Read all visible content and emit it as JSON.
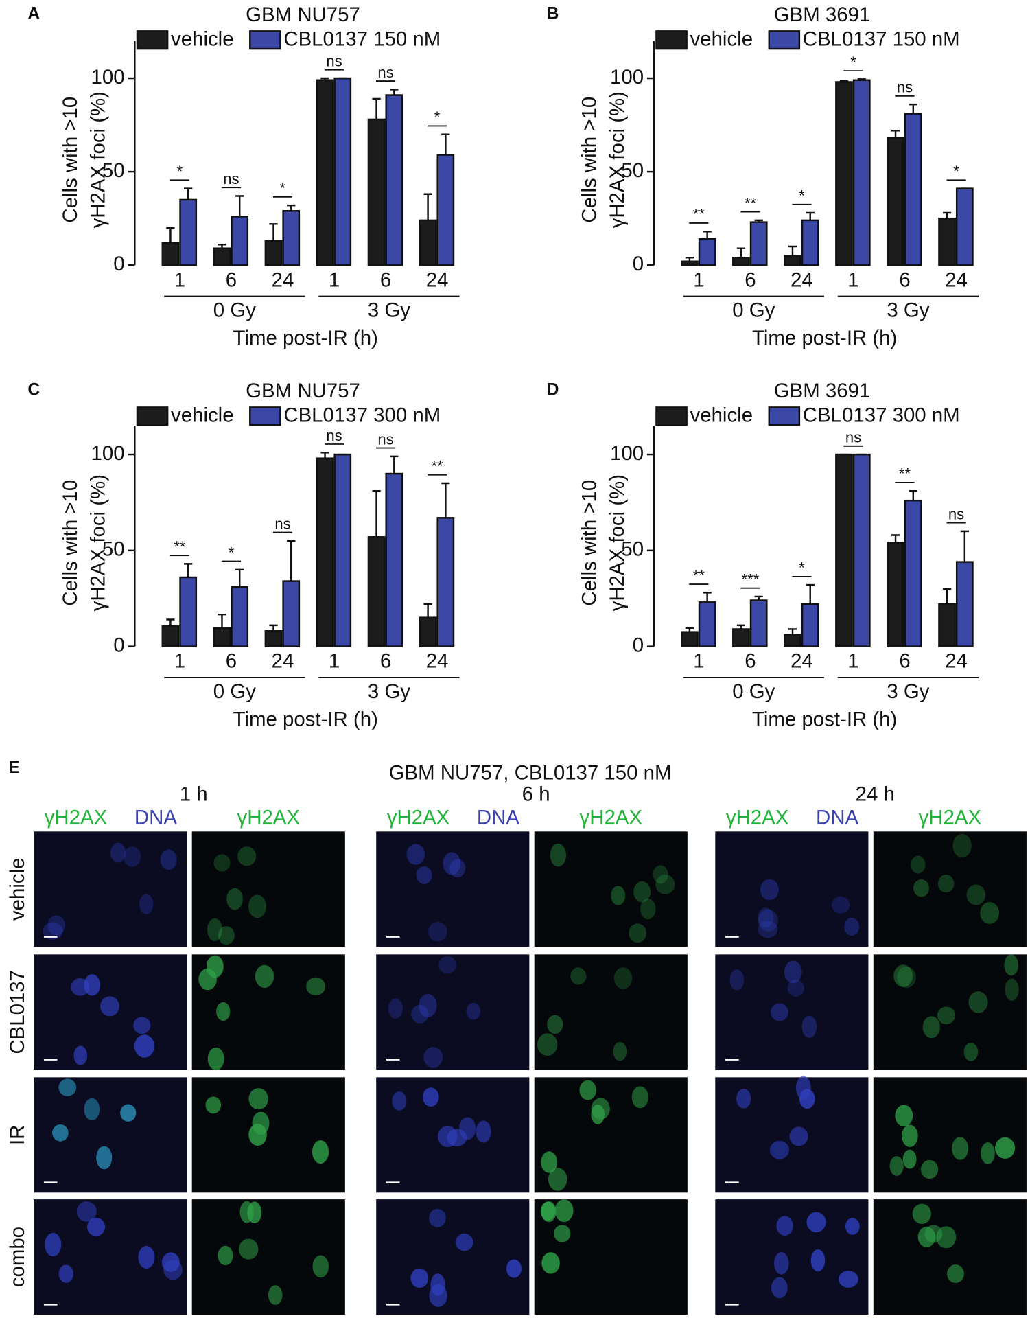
{
  "chart_data": [
    {
      "type": "bar",
      "label": "A",
      "title": "GBM NU757",
      "ylabel": [
        "Cells with >10",
        "γH2AX foci (%)"
      ],
      "xlabel": "Time post-IR (h)",
      "categories": [
        "1",
        "6",
        "24",
        "1",
        "6",
        "24"
      ],
      "groups": [
        "0 Gy",
        "3 Gy"
      ],
      "significance": [
        "*",
        "ns",
        "*",
        "ns",
        "ns",
        "*"
      ],
      "series": [
        {
          "name": "vehicle",
          "color": "#1c1c1c",
          "values": [
            12,
            9,
            13,
            99,
            78,
            24
          ],
          "errors": [
            8,
            2,
            9,
            1,
            11,
            14
          ]
        },
        {
          "name": "CBL0137 150 nM",
          "color": "#3b48a6",
          "values": [
            35,
            26,
            29,
            100,
            91,
            59
          ],
          "errors": [
            6,
            11,
            3,
            0,
            3,
            11
          ]
        }
      ],
      "ylim": [
        0,
        120
      ],
      "yticks": [
        0,
        50,
        100
      ]
    },
    {
      "type": "bar",
      "label": "B",
      "title": "GBM 3691",
      "ylabel": [
        "Cells with >10",
        "γH2AX foci (%)"
      ],
      "xlabel": "Time post-IR (h)",
      "categories": [
        "1",
        "6",
        "24",
        "1",
        "6",
        "24"
      ],
      "groups": [
        "0 Gy",
        "3 Gy"
      ],
      "significance": [
        "**",
        "**",
        "*",
        "*",
        "ns",
        "*"
      ],
      "series": [
        {
          "name": "vehicle",
          "color": "#1c1c1c",
          "values": [
            2,
            4,
            5,
            98,
            68,
            25
          ],
          "errors": [
            2,
            5,
            5,
            0.5,
            4,
            3
          ]
        },
        {
          "name": "CBL0137 150 nM",
          "color": "#3b48a6",
          "values": [
            14,
            23,
            24,
            99,
            81,
            41
          ],
          "errors": [
            4,
            1,
            4,
            0.5,
            5,
            0
          ]
        }
      ],
      "ylim": [
        0,
        120
      ],
      "yticks": [
        0,
        50,
        100
      ]
    },
    {
      "type": "bar",
      "label": "C",
      "title": "GBM NU757",
      "ylabel": [
        "Cells with >10",
        "γH2AX foci (%)"
      ],
      "xlabel": "Time post-IR (h)",
      "categories": [
        "1",
        "6",
        "24",
        "1",
        "6",
        "24"
      ],
      "groups": [
        "0 Gy",
        "3 Gy"
      ],
      "significance": [
        "**",
        "*",
        "ns",
        "ns",
        "ns",
        "**"
      ],
      "series": [
        {
          "name": "vehicle",
          "color": "#1c1c1c",
          "values": [
            10.5,
            9.6,
            8,
            98,
            57,
            15
          ],
          "errors": [
            3.5,
            7,
            3,
            3,
            24,
            7
          ]
        },
        {
          "name": "CBL0137 300 nM",
          "color": "#3b48a6",
          "values": [
            36,
            31,
            34,
            100,
            90,
            67
          ],
          "errors": [
            7,
            9,
            21,
            0,
            9,
            18
          ]
        }
      ],
      "ylim": [
        0,
        115
      ],
      "yticks": [
        0,
        50,
        100
      ]
    },
    {
      "type": "bar",
      "label": "D",
      "title": "GBM 3691",
      "ylabel": [
        "Cells with >10",
        "γH2AX foci (%)"
      ],
      "xlabel": "Time post-IR (h)",
      "categories": [
        "1",
        "6",
        "24",
        "1",
        "6",
        "24"
      ],
      "groups": [
        "0 Gy",
        "3 Gy"
      ],
      "significance": [
        "**",
        "***",
        "*",
        "ns",
        "**",
        "ns"
      ],
      "series": [
        {
          "name": "vehicle",
          "color": "#1c1c1c",
          "values": [
            7.5,
            9,
            6,
            100,
            54,
            22
          ],
          "errors": [
            2,
            2,
            3,
            0,
            4,
            8
          ]
        },
        {
          "name": "CBL0137 300 nM",
          "color": "#3b48a6",
          "values": [
            23,
            24,
            22,
            100,
            76,
            44
          ],
          "errors": [
            5,
            2,
            10,
            0,
            5,
            16
          ]
        }
      ],
      "ylim": [
        0,
        115
      ],
      "yticks": [
        0,
        50,
        100
      ]
    }
  ],
  "panel_e": {
    "label": "E",
    "title": "GBM NU757, CBL0137 150 nM",
    "timepoints": [
      "1 h",
      "6 h",
      "24 h"
    ],
    "channels": [
      "γH2AX",
      "DNA",
      "γH2AX"
    ],
    "rows": [
      "vehicle",
      "CBL0137",
      "IR",
      "combo"
    ]
  }
}
